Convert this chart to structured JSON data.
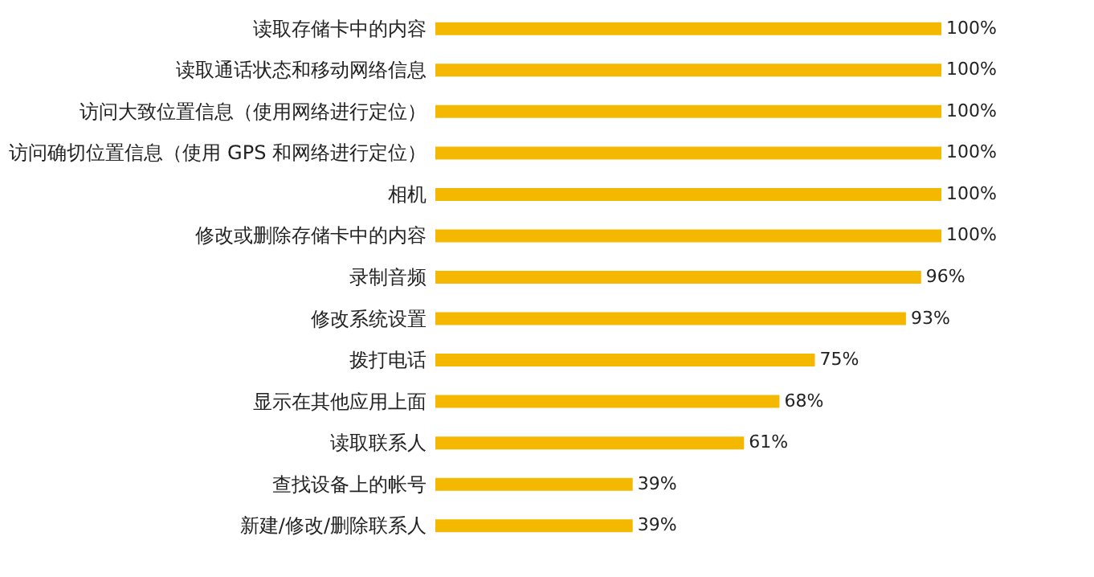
{
  "chart_data": {
    "type": "bar",
    "orientation": "horizontal",
    "categories": [
      "读取存储卡中的内容",
      "读取通话状态和移动网络信息",
      "访问大致位置信息（使用网络进行定位）",
      "访问确切位置信息（使用 GPS 和网络进行定位）",
      "相机",
      "修改或删除存储卡中的内容",
      "录制音频",
      "修改系统设置",
      "拨打电话",
      "显示在其他应用上面",
      "读取联系人",
      "查找设备上的帐号",
      "新建/修改/删除联系人"
    ],
    "values": [
      100,
      100,
      100,
      100,
      100,
      100,
      96,
      93,
      75,
      68,
      61,
      39,
      39
    ],
    "value_labels": [
      "100%",
      "100%",
      "100%",
      "100%",
      "100%",
      "100%",
      "96%",
      "93%",
      "75%",
      "68%",
      "61%",
      "39%",
      "39%"
    ],
    "color": "#f5b800",
    "grid": false
  }
}
